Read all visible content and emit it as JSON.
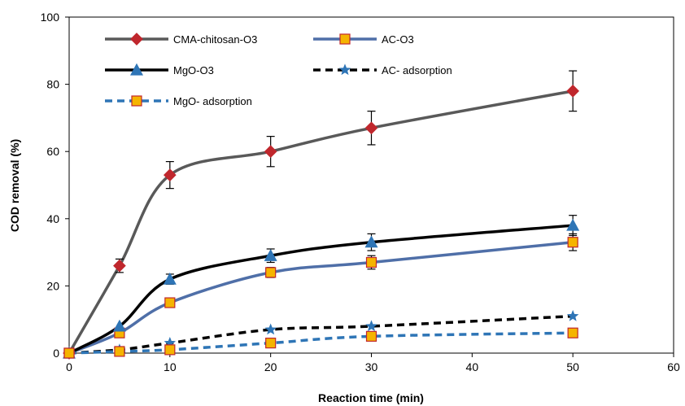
{
  "chart_data": {
    "type": "line",
    "title": "",
    "xlabel": "Reaction time (min)",
    "ylabel": "COD removal (%)",
    "xlim": [
      0,
      60
    ],
    "ylim": [
      0,
      100
    ],
    "xticks": [
      0,
      10,
      20,
      30,
      40,
      50,
      60
    ],
    "yticks": [
      0,
      20,
      40,
      60,
      80,
      100
    ],
    "grid": false,
    "legend_position": "top-left inside",
    "x": [
      0,
      5,
      10,
      20,
      30,
      50
    ],
    "series": [
      {
        "name": "CMA-chitosan-O3",
        "values": [
          0,
          26,
          53,
          60,
          67,
          78
        ],
        "errors": [
          0,
          2,
          4,
          4.5,
          5,
          6
        ],
        "color": "#595959",
        "marker": "diamond",
        "marker_color": "#c0272d",
        "dashed": false
      },
      {
        "name": "AC-O3",
        "values": [
          0,
          6,
          15,
          24,
          27,
          33
        ],
        "errors": [
          0,
          0,
          0,
          1.5,
          2,
          2.5
        ],
        "color": "#4f6fa8",
        "marker": "square",
        "marker_color": "#f5b400",
        "dashed": false
      },
      {
        "name": "MgO-O3",
        "values": [
          0,
          8,
          22,
          29,
          33,
          38
        ],
        "errors": [
          0,
          0,
          1.5,
          2,
          2.5,
          3
        ],
        "color": "#000000",
        "marker": "triangle",
        "marker_color": "#2e75b6",
        "dashed": false
      },
      {
        "name": "AC- adsorption",
        "values": [
          0,
          1,
          3,
          7,
          8,
          11
        ],
        "errors": [
          0,
          0,
          0,
          0,
          0,
          0
        ],
        "color": "#000000",
        "marker": "star",
        "marker_color": "#2e75b6",
        "dashed": true
      },
      {
        "name": "MgO- adsorption",
        "values": [
          0,
          0.5,
          1,
          3,
          5,
          6
        ],
        "errors": [
          0,
          0,
          0,
          0,
          0,
          0
        ],
        "color": "#2e75b6",
        "marker": "square",
        "marker_color": "#f5b400",
        "dashed": true
      }
    ]
  }
}
